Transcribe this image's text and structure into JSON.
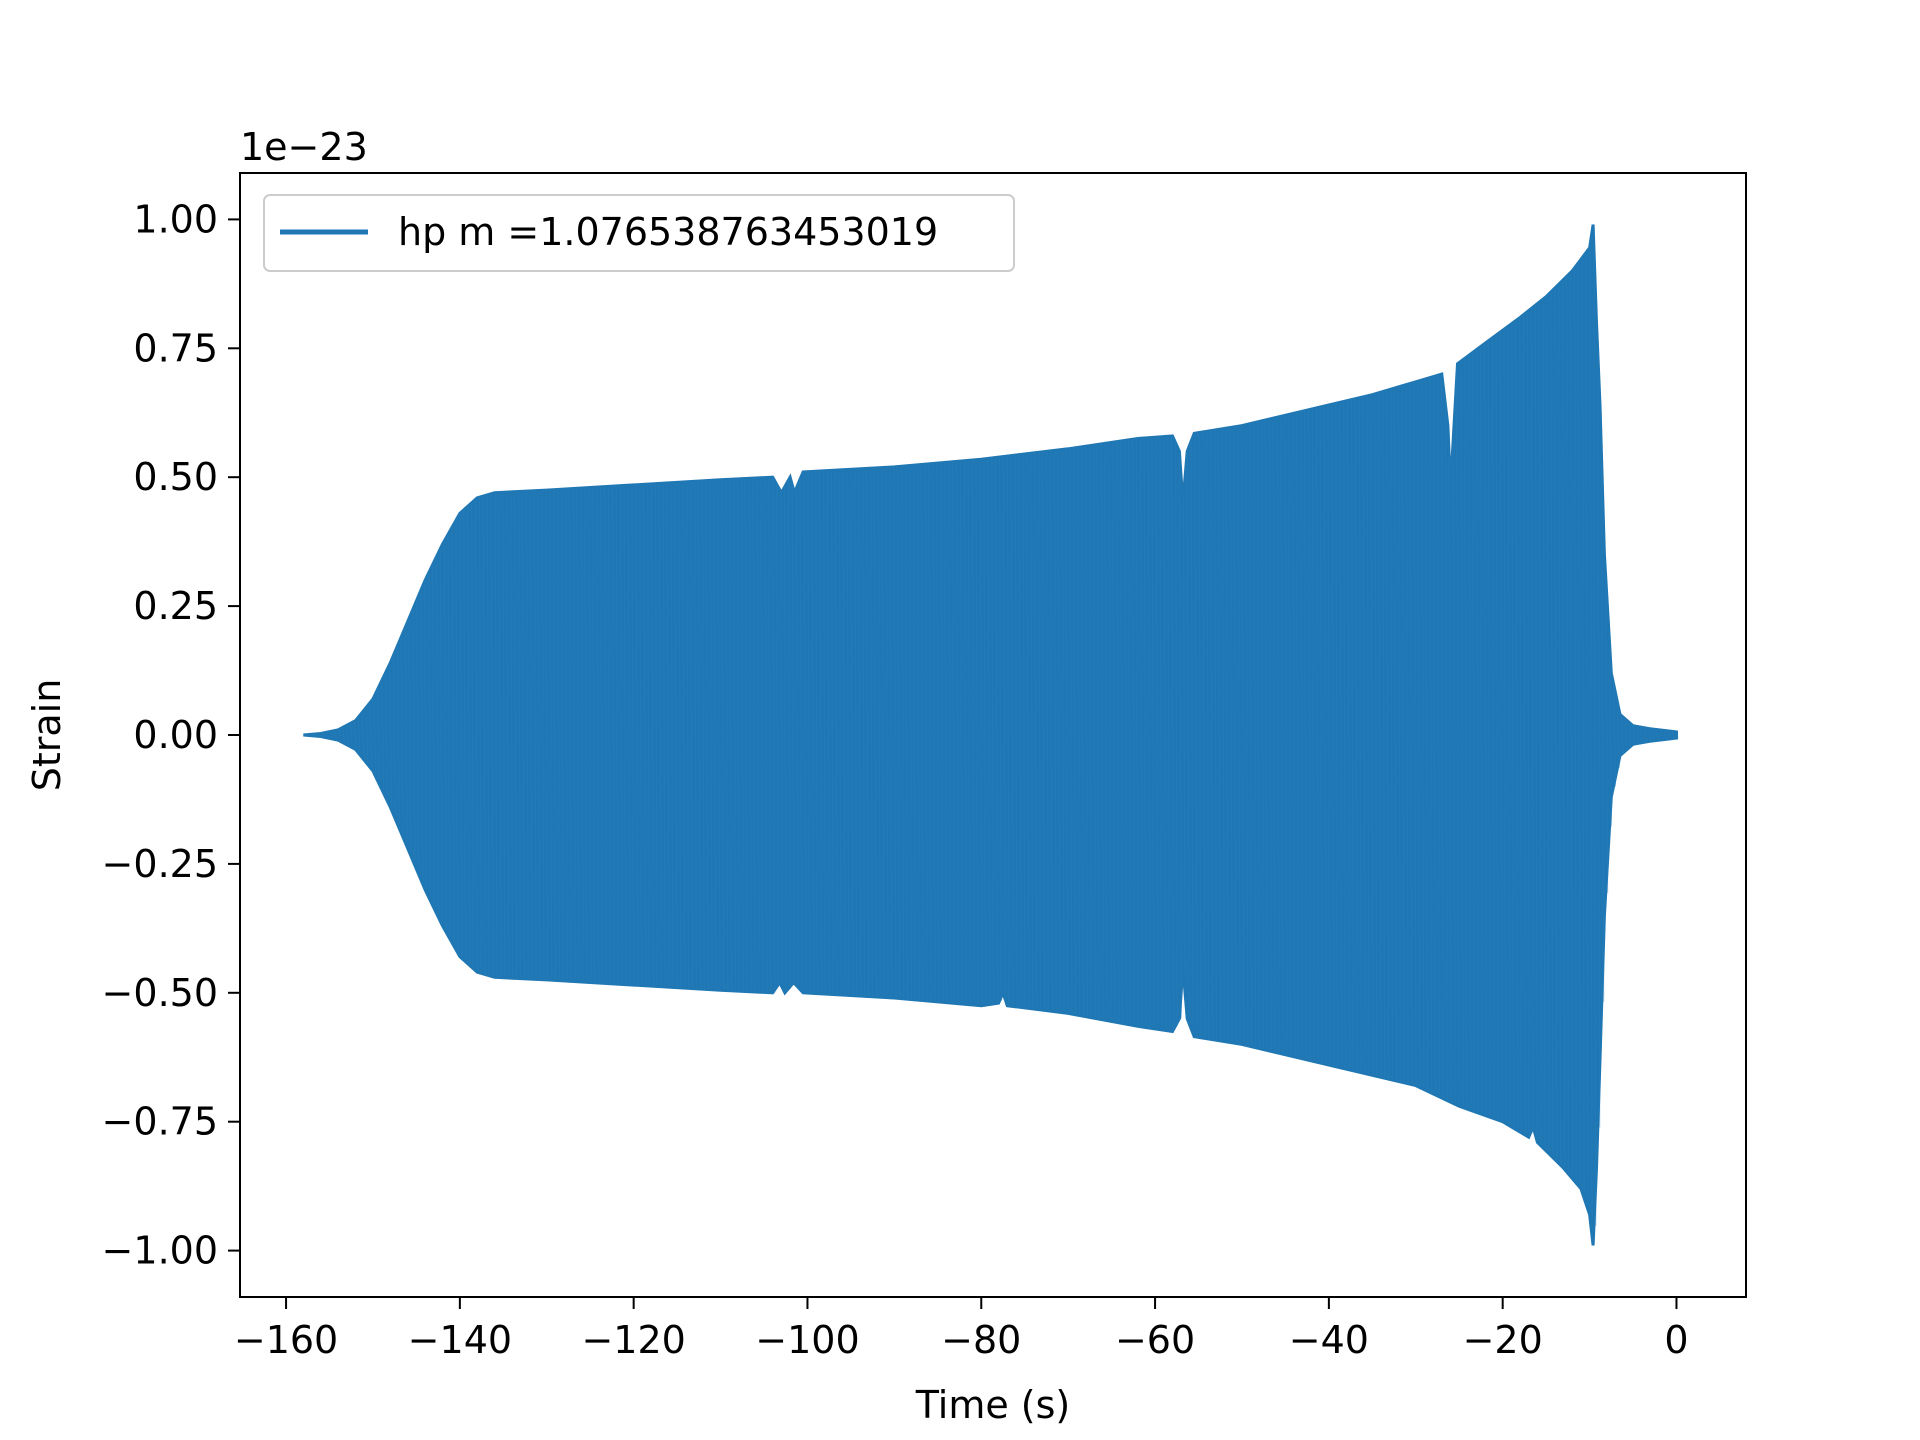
{
  "chart_data": {
    "type": "line",
    "title": "",
    "xlabel": "Time (s)",
    "ylabel": "Strain",
    "y_offset_label": "1e−23",
    "xlim": [
      -165.3,
      8
    ],
    "ylim": [
      -1.09,
      1.09
    ],
    "x_ticks": [
      -160,
      -140,
      -120,
      -100,
      -80,
      -60,
      -40,
      -20,
      0
    ],
    "x_tick_labels": [
      "−160",
      "−140",
      "−120",
      "−100",
      "−80",
      "−60",
      "−40",
      "−20",
      "0"
    ],
    "y_ticks": [
      1.0,
      0.75,
      0.5,
      0.25,
      0.0,
      -0.25,
      -0.5,
      -0.75,
      -1.0
    ],
    "y_tick_labels": [
      "1.00",
      "0.75",
      "0.50",
      "0.25",
      "0.00",
      "−0.25",
      "−0.50",
      "−0.75",
      "−1.00"
    ],
    "grid": false,
    "legend": {
      "placement": "upper-left"
    },
    "series": [
      {
        "name": "hp m =1.076538763453019",
        "color": "#1f77b4",
        "style": "dense-oscillation",
        "upper_envelope": [
          [
            -158,
            0.0
          ],
          [
            -156,
            0.003
          ],
          [
            -154,
            0.01
          ],
          [
            -152,
            0.028
          ],
          [
            -150,
            0.07
          ],
          [
            -148,
            0.14
          ],
          [
            -146,
            0.22
          ],
          [
            -144,
            0.3
          ],
          [
            -142,
            0.37
          ],
          [
            -140,
            0.43
          ],
          [
            -138,
            0.46
          ],
          [
            -136,
            0.47
          ],
          [
            -130,
            0.475
          ],
          [
            -120,
            0.485
          ],
          [
            -110,
            0.495
          ],
          [
            -104,
            0.5
          ],
          [
            -103,
            0.47
          ],
          [
            -102,
            0.5
          ],
          [
            -101.5,
            0.47
          ],
          [
            -100.5,
            0.51
          ],
          [
            -90,
            0.52
          ],
          [
            -80,
            0.535
          ],
          [
            -70,
            0.555
          ],
          [
            -62,
            0.575
          ],
          [
            -58,
            0.58
          ],
          [
            -57.2,
            0.55
          ],
          [
            -56.8,
            0.45
          ],
          [
            -56.3,
            0.55
          ],
          [
            -55.5,
            0.585
          ],
          [
            -50,
            0.6
          ],
          [
            -40,
            0.64
          ],
          [
            -35,
            0.66
          ],
          [
            -30,
            0.685
          ],
          [
            -27,
            0.7
          ],
          [
            -26.3,
            0.6
          ],
          [
            -26,
            0.48
          ],
          [
            -25.6,
            0.6
          ],
          [
            -25.2,
            0.72
          ],
          [
            -22,
            0.76
          ],
          [
            -18,
            0.81
          ],
          [
            -15,
            0.85
          ],
          [
            -12,
            0.9
          ],
          [
            -10,
            0.945
          ],
          [
            -9.6,
            0.99
          ],
          [
            -9.2,
            0.8
          ],
          [
            -8.8,
            0.64
          ],
          [
            -8.3,
            0.35
          ],
          [
            -7.5,
            0.12
          ],
          [
            -6.5,
            0.04
          ],
          [
            -5,
            0.018
          ],
          [
            -3,
            0.012
          ],
          [
            -1,
            0.008
          ],
          [
            0,
            0.006
          ]
        ],
        "lower_envelope": [
          [
            -158,
            0.0
          ],
          [
            -156,
            -0.003
          ],
          [
            -154,
            -0.01
          ],
          [
            -152,
            -0.028
          ],
          [
            -150,
            -0.07
          ],
          [
            -148,
            -0.14
          ],
          [
            -146,
            -0.22
          ],
          [
            -144,
            -0.3
          ],
          [
            -142,
            -0.37
          ],
          [
            -140,
            -0.43
          ],
          [
            -138,
            -0.46
          ],
          [
            -136,
            -0.47
          ],
          [
            -130,
            -0.475
          ],
          [
            -120,
            -0.485
          ],
          [
            -110,
            -0.495
          ],
          [
            -104,
            -0.5
          ],
          [
            -103.2,
            -0.48
          ],
          [
            -102.6,
            -0.5
          ],
          [
            -101.6,
            -0.48
          ],
          [
            -100.5,
            -0.5
          ],
          [
            -90,
            -0.51
          ],
          [
            -80,
            -0.525
          ],
          [
            -78,
            -0.52
          ],
          [
            -77.5,
            -0.5
          ],
          [
            -77,
            -0.525
          ],
          [
            -70,
            -0.54
          ],
          [
            -62,
            -0.565
          ],
          [
            -58,
            -0.575
          ],
          [
            -57.2,
            -0.55
          ],
          [
            -56.8,
            -0.45
          ],
          [
            -56.3,
            -0.55
          ],
          [
            -55.5,
            -0.585
          ],
          [
            -50,
            -0.6
          ],
          [
            -40,
            -0.64
          ],
          [
            -30,
            -0.68
          ],
          [
            -25,
            -0.72
          ],
          [
            -20,
            -0.75
          ],
          [
            -17,
            -0.78
          ],
          [
            -16.5,
            -0.76
          ],
          [
            -16,
            -0.79
          ],
          [
            -13,
            -0.84
          ],
          [
            -11,
            -0.88
          ],
          [
            -10,
            -0.93
          ],
          [
            -9.6,
            -0.99
          ],
          [
            -9.2,
            -0.84
          ],
          [
            -8.8,
            -0.63
          ],
          [
            -8.3,
            -0.35
          ],
          [
            -7.5,
            -0.12
          ],
          [
            -6.5,
            -0.04
          ],
          [
            -5,
            -0.018
          ],
          [
            -3,
            -0.012
          ],
          [
            -1,
            -0.008
          ],
          [
            0,
            -0.006
          ]
        ]
      }
    ]
  }
}
